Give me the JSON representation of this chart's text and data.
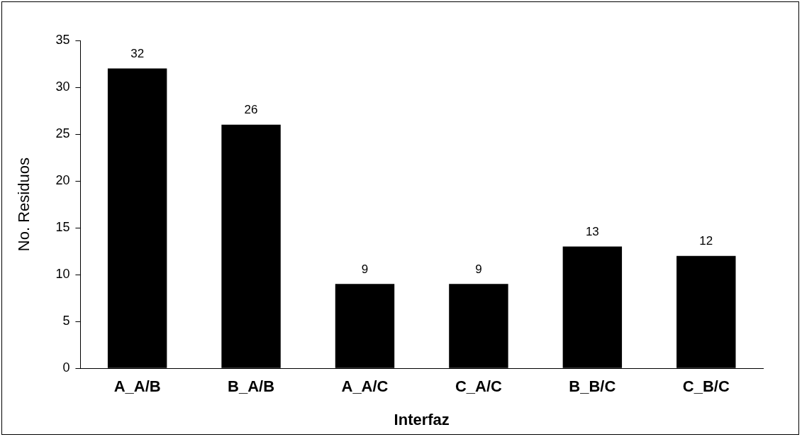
{
  "chart_data": {
    "type": "bar",
    "xlabel": "Interfaz",
    "ylabel": "No. Residuos",
    "categories": [
      "A_A/B",
      "B_A/B",
      "A_A/C",
      "C_A/C",
      "B_B/C",
      "C_B/C"
    ],
    "values": [
      32,
      26,
      9,
      9,
      13,
      12
    ],
    "color": "#000000",
    "ylim": [
      0,
      35
    ],
    "yticks": [
      0,
      5,
      10,
      15,
      20,
      25,
      30,
      35
    ],
    "grid": false,
    "legend": false,
    "data_labels": true
  }
}
